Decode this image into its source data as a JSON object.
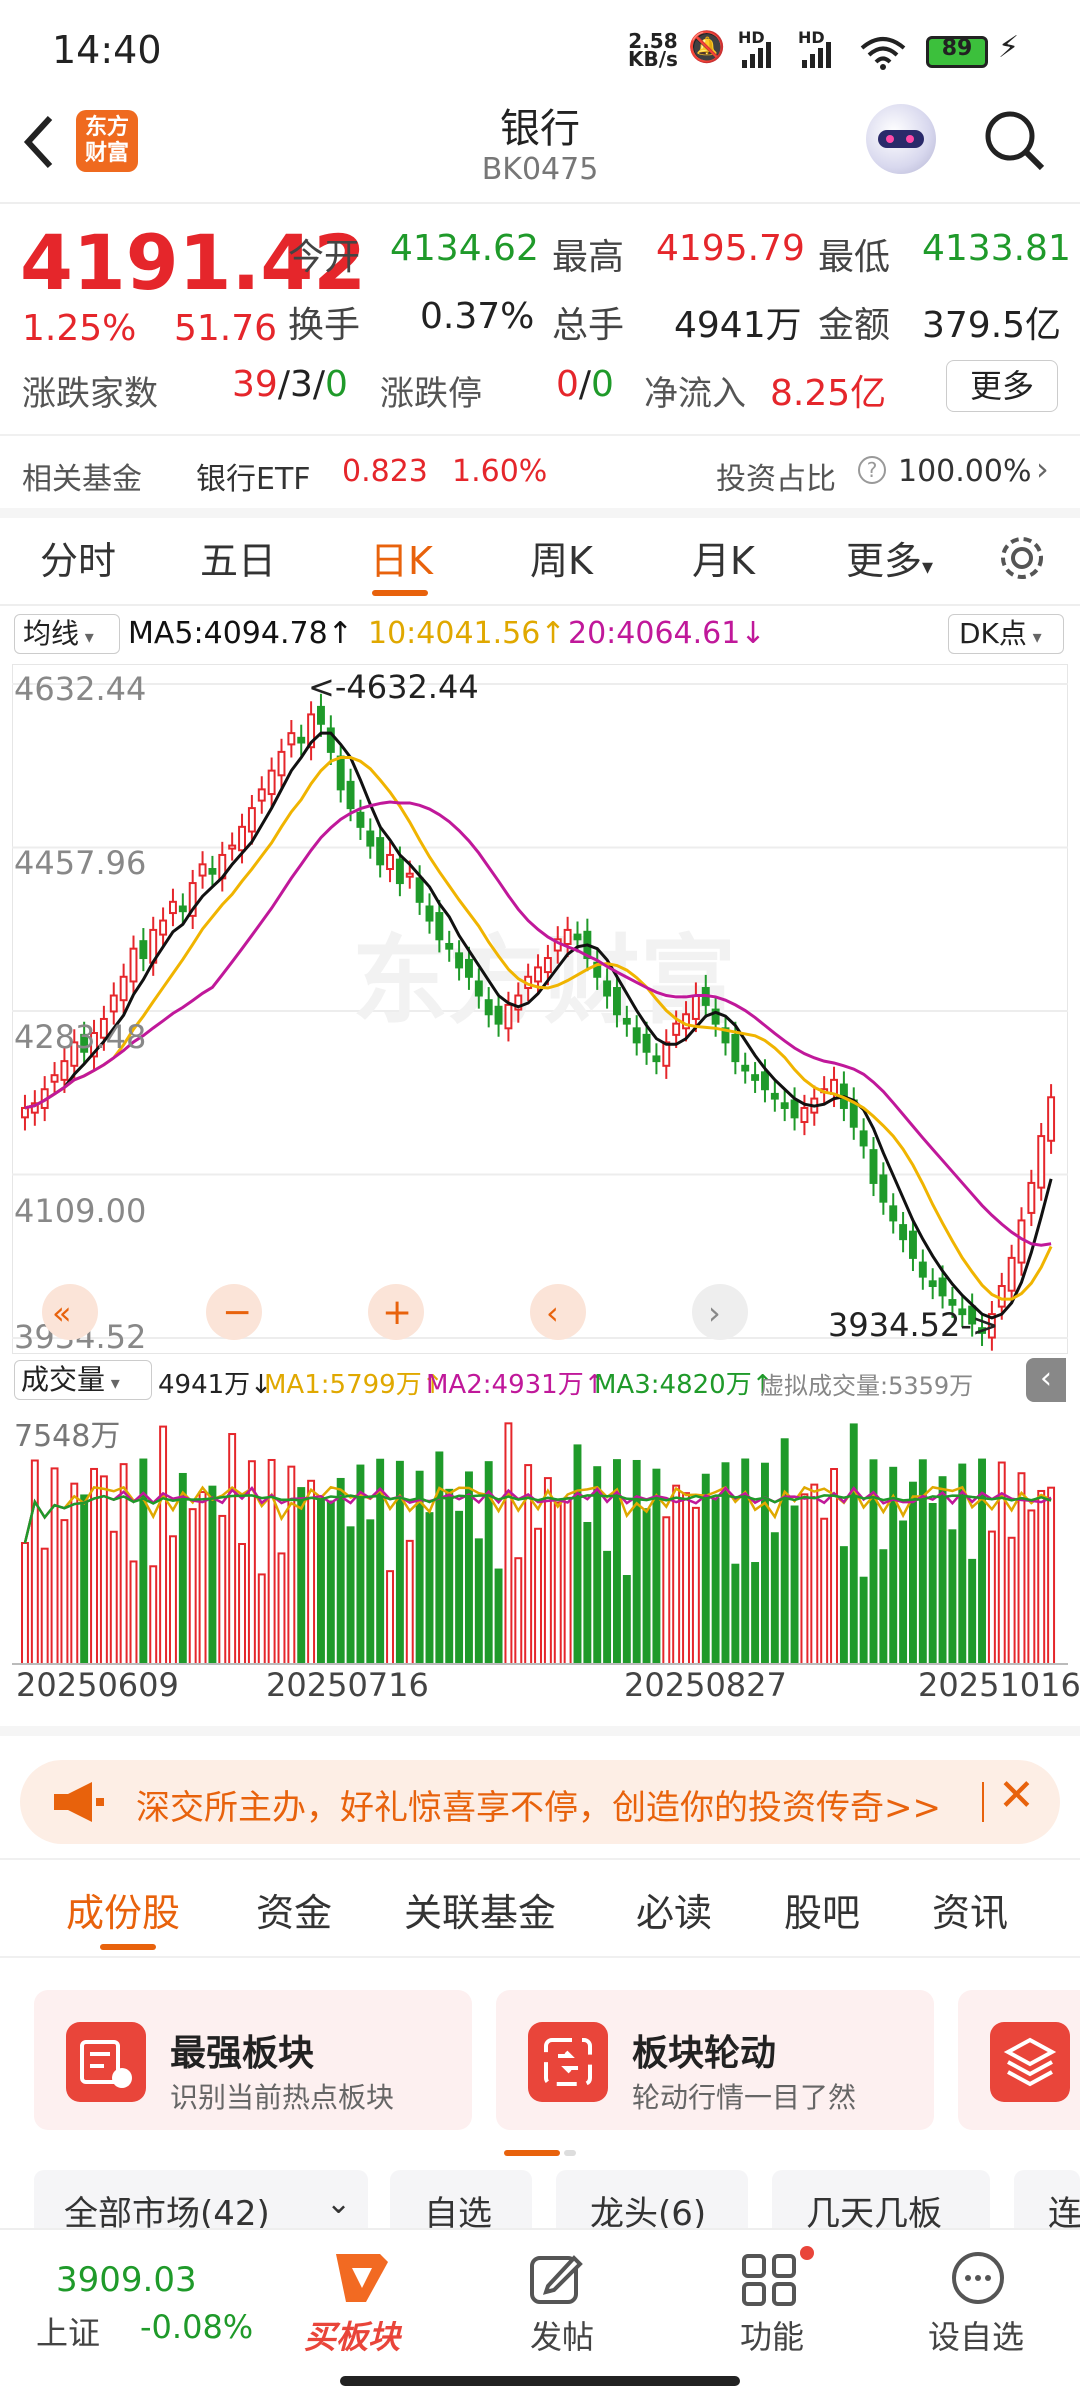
{
  "status": {
    "time": "14:40",
    "speed": "2.58",
    "speed_unit": "KB/s",
    "hd1": "HD",
    "hd2": "HD",
    "battery": "89"
  },
  "header": {
    "title": "银行",
    "code": "BK0475",
    "logo": "东方财富"
  },
  "quote": {
    "price": "4191.42",
    "pct": "1.25%",
    "chg": "51.76",
    "open_label": "今开",
    "open": "4134.62",
    "high_label": "最高",
    "high": "4195.79",
    "low_label": "最低",
    "low": "4133.81",
    "turnover_label": "换手",
    "turnover": "0.37%",
    "volume_label": "总手",
    "volume": "4941万",
    "amount_label": "金额",
    "amount": "379.5亿",
    "breadth_label": "涨跌家数",
    "breadth_up": "39",
    "breadth_flat": "3",
    "breadth_down": "0",
    "limit_label": "涨跌停",
    "limit_up": "0",
    "limit_down": "0",
    "inflow_label": "净流入",
    "inflow": "8.25亿",
    "more": "更多"
  },
  "fund": {
    "label": "相关基金",
    "name": "银行ETF",
    "price": "0.823",
    "pct": "1.60%",
    "ratio_label": "投资占比",
    "ratio": "100.00%"
  },
  "period_tabs": [
    "分时",
    "五日",
    "日K",
    "周K",
    "月K",
    "更多"
  ],
  "active_period": 2,
  "ma_bar": {
    "select": "均线",
    "ma5": "MA5:4094.78",
    "ma10": "10:4041.56",
    "ma20": "20:4064.61",
    "dk": "DK点"
  },
  "chart_labels": {
    "y1": "4632.44",
    "y2": "4457.96",
    "y3": "4283.48",
    "y4": "4109.00",
    "y5": "3934.52",
    "high_ann": "<-4632.44",
    "low_ann": "3934.52->",
    "watermark": "东方财富"
  },
  "vol_bar": {
    "select": "成交量",
    "vol": "4941万",
    "ma1": "MA1:5799万",
    "ma2": "MA2:4931万",
    "ma3": "MA3:4820万",
    "virtual": "虚拟成交量:5359万",
    "ymax": "7548万"
  },
  "x_dates": [
    "20250609",
    "20250716",
    "20250827",
    "20251016"
  ],
  "banner": {
    "text": "深交所主办，好礼惊喜享不停，创造你的投资传奇>>"
  },
  "section_tabs": [
    "成份股",
    "资金",
    "关联基金",
    "必读",
    "股吧",
    "资讯"
  ],
  "cards": [
    {
      "title": "最强板块",
      "sub": "识别当前热点板块"
    },
    {
      "title": "板块轮动",
      "sub": "轮动行情一目了然"
    }
  ],
  "filters": [
    "全部市场(42)",
    "自选",
    "龙头(6)",
    "几天几板",
    "连"
  ],
  "bottom_nav": {
    "index_value": "3909.03",
    "index_name": "上证",
    "index_pct": "-0.08%",
    "buy": "买板块",
    "post": "发帖",
    "func": "功能",
    "watch": "设自选"
  },
  "colors": {
    "up": "#e5262b",
    "down": "#1f9a2a",
    "ma5": "#111111",
    "ma10": "#f0b400",
    "ma20": "#c0189a",
    "accent": "#e8620c"
  },
  "chart_data": {
    "type": "candlestick",
    "x_range": [
      "20250609",
      "20251016"
    ],
    "y_range": [
      3934.52,
      4632.44
    ],
    "y_ticks": [
      4632.44,
      4457.96,
      4283.48,
      4109.0,
      3934.52
    ],
    "max": 4632.44,
    "min": 3934.52,
    "close_series": [
      4180,
      4185,
      4200,
      4215,
      4230,
      4250,
      4240,
      4260,
      4275,
      4300,
      4320,
      4350,
      4340,
      4370,
      4380,
      4400,
      4390,
      4420,
      4440,
      4430,
      4450,
      4460,
      4480,
      4500,
      4520,
      4540,
      4560,
      4580,
      4570,
      4600,
      4590,
      4560,
      4520,
      4500,
      4480,
      4460,
      4440,
      4450,
      4420,
      4430,
      4400,
      4380,
      4360,
      4350,
      4330,
      4320,
      4300,
      4280,
      4270,
      4290,
      4300,
      4320,
      4330,
      4340,
      4360,
      4370,
      4360,
      4340,
      4320,
      4300,
      4280,
      4270,
      4250,
      4240,
      4230,
      4250,
      4270,
      4280,
      4300,
      4290,
      4270,
      4250,
      4230,
      4220,
      4210,
      4200,
      4190,
      4180,
      4170,
      4180,
      4190,
      4200,
      4210,
      4180,
      4160,
      4140,
      4100,
      4080,
      4060,
      4040,
      4020,
      4000,
      3990,
      3980,
      3970,
      3960,
      3950,
      3940,
      3960,
      3990,
      4020,
      4060,
      4100,
      4150,
      4191.42
    ],
    "series": [
      {
        "name": "MA5",
        "value": 4094.78
      },
      {
        "name": "MA10",
        "value": 4041.56
      },
      {
        "name": "MA20",
        "value": 4064.61
      }
    ],
    "volume": {
      "max_label": "7548万",
      "last": "4941万",
      "ma1": "5799万",
      "ma2": "4931万",
      "ma3": "4820万"
    }
  }
}
